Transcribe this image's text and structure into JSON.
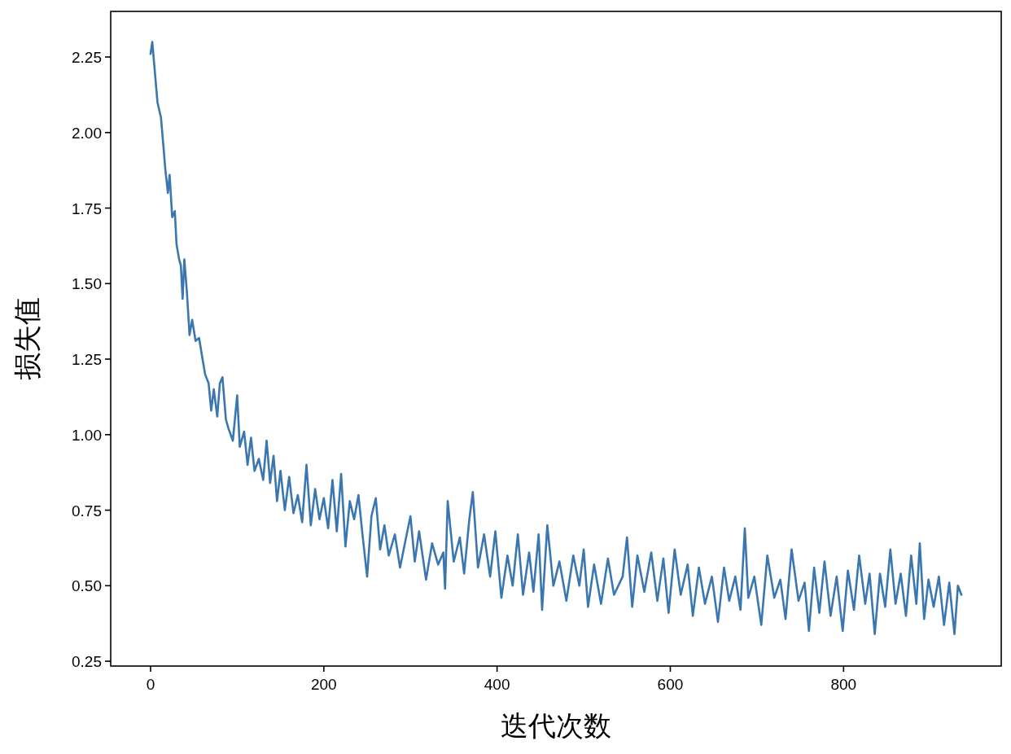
{
  "chart_data": {
    "type": "line",
    "xlabel": "迭代次数",
    "ylabel": "损失值",
    "xlim": [
      -46,
      982
    ],
    "ylim": [
      0.234,
      2.401
    ],
    "xticks": [
      0,
      200,
      400,
      600,
      800
    ],
    "yticks": [
      {
        "value": 0.25,
        "label": "0.25"
      },
      {
        "value": 0.5,
        "label": "0.50"
      },
      {
        "value": 0.75,
        "label": "0.75"
      },
      {
        "value": 1.0,
        "label": "1.00"
      },
      {
        "value": 1.25,
        "label": "1.25"
      },
      {
        "value": 1.5,
        "label": "1.50"
      },
      {
        "value": 1.75,
        "label": "1.75"
      },
      {
        "value": 2.0,
        "label": "2.00"
      },
      {
        "value": 2.25,
        "label": "2.25"
      }
    ],
    "x": [
      0,
      2,
      5,
      8,
      12,
      15,
      17,
      20,
      22,
      25,
      28,
      30,
      33,
      35,
      37,
      39,
      42,
      45,
      48,
      52,
      56,
      60,
      63,
      67,
      70,
      73,
      77,
      80,
      83,
      87,
      90,
      95,
      100,
      103,
      108,
      112,
      116,
      120,
      125,
      130,
      134,
      138,
      142,
      146,
      150,
      155,
      160,
      165,
      170,
      175,
      180,
      185,
      190,
      195,
      200,
      205,
      210,
      215,
      220,
      225,
      230,
      235,
      240,
      245,
      250,
      255,
      260,
      265,
      270,
      275,
      282,
      288,
      295,
      300,
      305,
      310,
      318,
      325,
      332,
      338,
      340,
      343,
      350,
      357,
      362,
      368,
      372,
      378,
      385,
      392,
      398,
      405,
      412,
      418,
      424,
      430,
      437,
      442,
      448,
      452,
      458,
      465,
      472,
      480,
      488,
      495,
      500,
      505,
      512,
      520,
      528,
      535,
      545,
      550,
      556,
      562,
      570,
      578,
      585,
      592,
      598,
      605,
      612,
      620,
      626,
      633,
      640,
      648,
      655,
      662,
      668,
      675,
      681,
      686,
      690,
      697,
      705,
      712,
      720,
      727,
      733,
      740,
      748,
      755,
      760,
      766,
      772,
      778,
      785,
      792,
      799,
      805,
      812,
      818,
      825,
      830,
      836,
      842,
      848,
      854,
      860,
      866,
      872,
      878,
      884,
      888,
      893,
      898,
      904,
      910,
      916,
      922,
      928,
      932,
      936
    ],
    "series": [
      {
        "color": "#3a76b0",
        "values": [
          2.26,
          2.3,
          2.2,
          2.1,
          2.05,
          1.95,
          1.88,
          1.8,
          1.86,
          1.72,
          1.74,
          1.63,
          1.58,
          1.56,
          1.45,
          1.58,
          1.47,
          1.33,
          1.38,
          1.31,
          1.32,
          1.25,
          1.2,
          1.17,
          1.08,
          1.15,
          1.06,
          1.17,
          1.19,
          1.05,
          1.02,
          0.98,
          1.13,
          0.96,
          1.01,
          0.9,
          0.99,
          0.88,
          0.92,
          0.85,
          0.98,
          0.84,
          0.93,
          0.78,
          0.88,
          0.75,
          0.86,
          0.74,
          0.8,
          0.71,
          0.9,
          0.7,
          0.82,
          0.72,
          0.79,
          0.69,
          0.85,
          0.68,
          0.87,
          0.63,
          0.78,
          0.72,
          0.8,
          0.66,
          0.53,
          0.73,
          0.79,
          0.62,
          0.7,
          0.6,
          0.67,
          0.56,
          0.66,
          0.73,
          0.58,
          0.68,
          0.52,
          0.64,
          0.57,
          0.61,
          0.49,
          0.78,
          0.58,
          0.66,
          0.54,
          0.72,
          0.81,
          0.56,
          0.67,
          0.53,
          0.68,
          0.46,
          0.6,
          0.5,
          0.67,
          0.47,
          0.61,
          0.48,
          0.67,
          0.42,
          0.7,
          0.5,
          0.58,
          0.45,
          0.6,
          0.5,
          0.62,
          0.43,
          0.57,
          0.44,
          0.59,
          0.47,
          0.53,
          0.66,
          0.43,
          0.6,
          0.48,
          0.61,
          0.45,
          0.59,
          0.41,
          0.62,
          0.47,
          0.57,
          0.4,
          0.56,
          0.44,
          0.53,
          0.38,
          0.56,
          0.45,
          0.53,
          0.42,
          0.69,
          0.46,
          0.53,
          0.37,
          0.6,
          0.46,
          0.52,
          0.39,
          0.62,
          0.45,
          0.51,
          0.35,
          0.56,
          0.41,
          0.58,
          0.4,
          0.53,
          0.35,
          0.55,
          0.42,
          0.6,
          0.44,
          0.54,
          0.34,
          0.54,
          0.43,
          0.62,
          0.44,
          0.54,
          0.4,
          0.6,
          0.44,
          0.64,
          0.39,
          0.52,
          0.43,
          0.53,
          0.37,
          0.51,
          0.34,
          0.5,
          0.47
        ]
      }
    ]
  }
}
